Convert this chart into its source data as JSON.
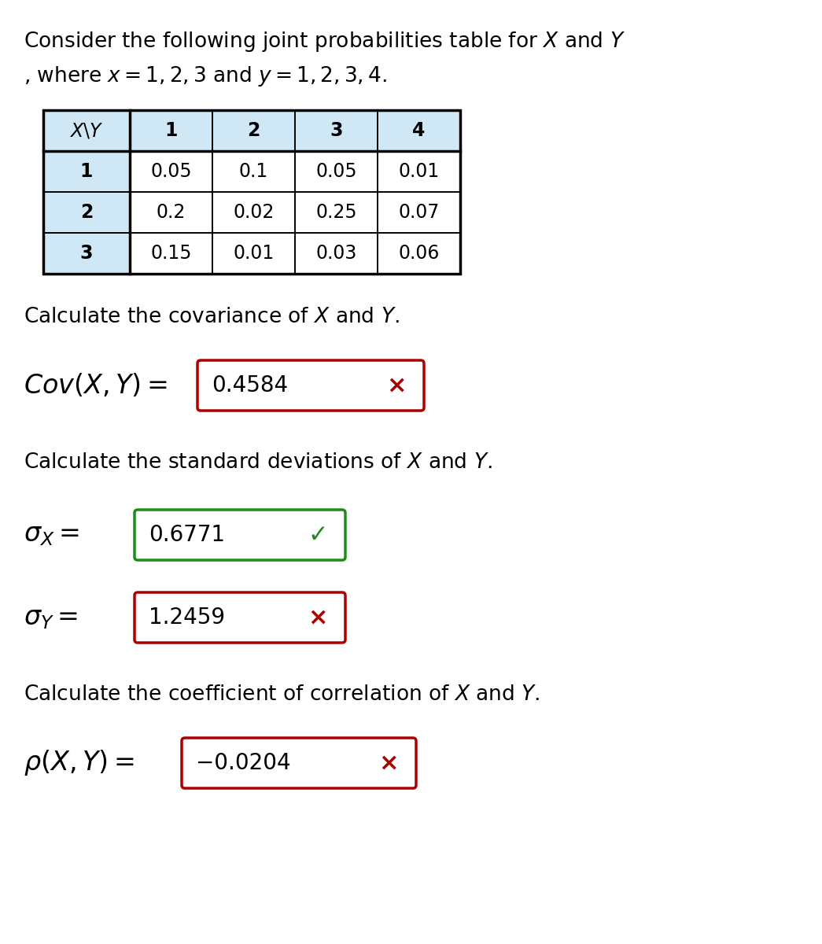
{
  "title_line1": "Consider the following joint probabilities table for $X$ and $Y$",
  "title_line2": ", where $x = 1, 2, 3$ and $y = 1, 2, 3, 4$.",
  "table_header": [
    "$X\\backslash Y$",
    "1",
    "2",
    "3",
    "4"
  ],
  "table_rows": [
    [
      "1",
      "0.05",
      "0.1",
      "0.05",
      "0.01"
    ],
    [
      "2",
      "0.2",
      "0.02",
      "0.25",
      "0.07"
    ],
    [
      "3",
      "0.15",
      "0.01",
      "0.03",
      "0.06"
    ]
  ],
  "header_bg": "#d0e8f5",
  "row_header_bg": "#d0e8f5",
  "table_border": "#000000",
  "section1_text": "Calculate the covariance of $X$ and $Y$.",
  "cov_label": "$\\mathit{Cov}(X, Y) = $",
  "cov_value": "0.4584",
  "cov_correct": false,
  "section2_text": "Calculate the standard deviations of $X$ and $Y$.",
  "sx_label": "$\\sigma_X = $",
  "sx_value": "0.6771",
  "sx_correct": true,
  "sy_label": "$\\sigma_Y = $",
  "sy_value": "1.2459",
  "sy_correct": false,
  "section3_text": "Calculate the coefficient of correlation of $X$ and $Y$.",
  "rho_label": "$\\rho(X, Y) = $",
  "rho_value": "−0.0204",
  "rho_correct": false,
  "correct_color": "#1a8c1a",
  "incorrect_color": "#aa0000",
  "text_color": "#000000",
  "bg_color": "#ffffff",
  "font_size_title": 19,
  "font_size_table": 17,
  "font_size_section": 19,
  "font_size_label": 24,
  "font_size_box_val": 20,
  "font_size_symbol": 22
}
